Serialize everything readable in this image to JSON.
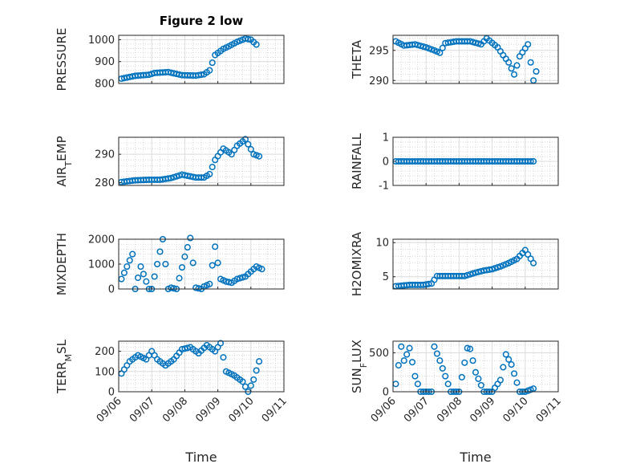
{
  "marker_color": "#0072bd",
  "chart_data": [
    {
      "type": "scatter",
      "title": "Figure 2 low",
      "ylabel": "PRESSURE",
      "ylabel_sub": "",
      "ylabel_post": "",
      "xlabel": "",
      "xlim": [
        "2024-09-06",
        "2024-09-11"
      ],
      "ylim": [
        800,
        1020
      ],
      "yticks": [
        800,
        900,
        1000
      ],
      "xticks": [],
      "series": [
        {
          "x": [
            "2024-09-06 02:00",
            "2024-09-06 12:00",
            "2024-09-06 22:00",
            "2024-09-07 02:00",
            "2024-09-07 12:00",
            "2024-09-07 22:00",
            "2024-09-08 08:00",
            "2024-09-08 14:00",
            "2024-09-08 18:00",
            "2024-09-08 22:00",
            "2024-09-09 04:00",
            "2024-09-09 08:00",
            "2024-09-09 14:00",
            "2024-09-09 20:00",
            "2024-09-10 00:00",
            "2024-09-10 04:00"
          ],
          "y": [
            822,
            835,
            840,
            848,
            852,
            838,
            836,
            842,
            860,
            930,
            958,
            970,
            990,
            1005,
            1000,
            978
          ]
        }
      ]
    },
    {
      "type": "scatter",
      "title": "",
      "ylabel": "THETA",
      "ylabel_sub": "",
      "ylabel_post": "",
      "xlabel": "",
      "xlim": [
        "2024-09-06",
        "2024-09-11"
      ],
      "ylim": [
        289.5,
        297.5
      ],
      "yticks": [
        290,
        295
      ],
      "xticks": [],
      "series": [
        {
          "x": [
            "2024-09-06 02:00",
            "2024-09-06 08:00",
            "2024-09-06 16:00",
            "2024-09-07 00:00",
            "2024-09-07 06:00",
            "2024-09-07 10:00",
            "2024-09-07 14:00",
            "2024-09-07 22:00",
            "2024-09-08 08:00",
            "2024-09-08 16:00",
            "2024-09-08 20:00",
            "2024-09-09 04:00",
            "2024-09-09 08:00",
            "2024-09-09 12:00",
            "2024-09-09 16:00",
            "2024-09-09 20:00",
            "2024-09-10 02:00",
            "2024-09-10 06:00",
            "2024-09-10 08:00"
          ],
          "y": [
            296.5,
            295.8,
            296.0,
            295.5,
            295.0,
            294.6,
            296.2,
            296.5,
            296.5,
            296.0,
            297.0,
            295.5,
            294.2,
            293.0,
            291.0,
            294.0,
            296.0,
            290.0,
            291.5
          ]
        }
      ]
    },
    {
      "type": "scatter",
      "title": "",
      "ylabel": "AIR",
      "ylabel_sub": "T",
      "ylabel_post": "EMP",
      "xlabel": "",
      "xlim": [
        "2024-09-06",
        "2024-09-11"
      ],
      "ylim": [
        279,
        296
      ],
      "yticks": [
        280,
        290
      ],
      "xticks": [],
      "series": [
        {
          "x": [
            "2024-09-06 02:00",
            "2024-09-06 12:00",
            "2024-09-06 22:00",
            "2024-09-07 06:00",
            "2024-09-07 14:00",
            "2024-09-07 22:00",
            "2024-09-08 08:00",
            "2024-09-08 14:00",
            "2024-09-08 18:00",
            "2024-09-08 22:00",
            "2024-09-09 04:00",
            "2024-09-09 10:00",
            "2024-09-09 14:00",
            "2024-09-09 20:00",
            "2024-09-10 02:00",
            "2024-09-10 06:00"
          ],
          "y": [
            280.2,
            280.8,
            281.0,
            281.0,
            281.6,
            282.8,
            281.8,
            281.8,
            283.0,
            288.0,
            292.0,
            290.0,
            293.0,
            295.3,
            290.0,
            289.3
          ]
        }
      ]
    },
    {
      "type": "scatter",
      "title": "",
      "ylabel": "RAINFALL",
      "ylabel_sub": "",
      "ylabel_post": "",
      "xlabel": "",
      "xlim": [
        "2024-09-06",
        "2024-09-11"
      ],
      "ylim": [
        -1,
        1
      ],
      "yticks": [
        -1,
        0,
        1
      ],
      "xticks": [],
      "series": [
        {
          "x": [
            "2024-09-06 02:00",
            "2024-09-10 06:00"
          ],
          "y": [
            0,
            0
          ]
        }
      ]
    },
    {
      "type": "scatter",
      "title": "",
      "ylabel": "MIXDEPTH",
      "ylabel_sub": "",
      "ylabel_post": "",
      "xlabel": "",
      "xlim": [
        "2024-09-06",
        "2024-09-11"
      ],
      "ylim": [
        0,
        2000
      ],
      "yticks": [
        0,
        1000,
        2000
      ],
      "xticks": [],
      "series": [
        {
          "x": [
            "2024-09-06 02:00",
            "2024-09-06 10:00",
            "2024-09-06 12:00",
            "2024-09-06 16:00",
            "2024-09-06 22:00",
            "2024-09-07 00:00",
            "2024-09-07 04:00",
            "2024-09-07 08:00",
            "2024-09-07 12:00",
            "2024-09-07 14:00",
            "2024-09-07 18:00",
            "2024-09-08 00:00",
            "2024-09-08 04:00",
            "2024-09-08 08:00",
            "2024-09-08 12:00",
            "2024-09-08 14:00",
            "2024-09-08 18:00",
            "2024-09-08 22:00",
            "2024-09-09 02:00",
            "2024-09-09 06:00",
            "2024-09-09 10:00",
            "2024-09-09 14:00",
            "2024-09-09 20:00",
            "2024-09-10 00:00",
            "2024-09-10 04:00",
            "2024-09-10 08:00"
          ],
          "y": [
            400,
            1400,
            0,
            900,
            0,
            0,
            1000,
            2000,
            0,
            50,
            0,
            1300,
            2050,
            50,
            0,
            100,
            200,
            1700,
            400,
            300,
            250,
            400,
            500,
            700,
            900,
            800
          ]
        }
      ]
    },
    {
      "type": "scatter",
      "title": "",
      "ylabel": "H2OMIXRA",
      "ylabel_sub": "",
      "ylabel_post": "",
      "xlabel": "",
      "xlim": [
        "2024-09-06",
        "2024-09-11"
      ],
      "ylim": [
        3.2,
        10.5
      ],
      "yticks": [
        5,
        10
      ],
      "xticks": [],
      "series": [
        {
          "x": [
            "2024-09-06 02:00",
            "2024-09-06 12:00",
            "2024-09-06 22:00",
            "2024-09-07 04:00",
            "2024-09-07 08:00",
            "2024-09-07 18:00",
            "2024-09-08 04:00",
            "2024-09-08 12:00",
            "2024-09-08 18:00",
            "2024-09-09 00:00",
            "2024-09-09 06:00",
            "2024-09-09 12:00",
            "2024-09-09 18:00",
            "2024-09-10 00:00",
            "2024-09-10 06:00"
          ],
          "y": [
            3.6,
            3.8,
            3.8,
            4.0,
            5.1,
            5.1,
            5.1,
            5.6,
            5.9,
            6.1,
            6.5,
            7.0,
            7.6,
            8.9,
            7.0
          ]
        }
      ]
    },
    {
      "type": "scatter",
      "title": "",
      "ylabel": "TERR",
      "ylabel_sub": "M",
      "ylabel_post": "SL",
      "xlabel": "Time",
      "xlim": [
        "2024-09-06",
        "2024-09-11"
      ],
      "ylim": [
        0,
        250
      ],
      "yticks": [
        0,
        100,
        200
      ],
      "xticks": [
        "09/06",
        "09/07",
        "09/08",
        "09/09",
        "09/10",
        "09/11"
      ],
      "series": [
        {
          "x": [
            "2024-09-06 02:00",
            "2024-09-06 08:00",
            "2024-09-06 14:00",
            "2024-09-06 20:00",
            "2024-09-07 00:00",
            "2024-09-07 04:00",
            "2024-09-07 10:00",
            "2024-09-07 16:00",
            "2024-09-07 22:00",
            "2024-09-08 04:00",
            "2024-09-08 10:00",
            "2024-09-08 16:00",
            "2024-09-08 22:00",
            "2024-09-09 02:00",
            "2024-09-09 06:00",
            "2024-09-09 12:00",
            "2024-09-09 18:00",
            "2024-09-09 22:00",
            "2024-09-10 02:00",
            "2024-09-10 06:00"
          ],
          "y": [
            90,
            150,
            180,
            160,
            200,
            160,
            130,
            160,
            210,
            220,
            190,
            230,
            200,
            240,
            100,
            80,
            50,
            0,
            60,
            150
          ]
        }
      ]
    },
    {
      "type": "scatter",
      "title": "",
      "ylabel": "SUN",
      "ylabel_sub": "F",
      "ylabel_post": "LUX",
      "xlabel": "Time",
      "xlim": [
        "2024-09-06",
        "2024-09-11"
      ],
      "ylim": [
        0,
        650
      ],
      "yticks": [
        0,
        500
      ],
      "xticks": [
        "09/06",
        "09/07",
        "09/08",
        "09/09",
        "09/10",
        "09/11"
      ],
      "series": [
        {
          "x": [
            "2024-09-06 02:00",
            "2024-09-06 06:00",
            "2024-09-06 08:00",
            "2024-09-06 12:00",
            "2024-09-06 16:00",
            "2024-09-06 20:00",
            "2024-09-07 00:00",
            "2024-09-07 04:00",
            "2024-09-07 06:00",
            "2024-09-07 10:00",
            "2024-09-07 18:00",
            "2024-09-08 00:00",
            "2024-09-08 06:00",
            "2024-09-08 08:00",
            "2024-09-08 12:00",
            "2024-09-08 18:00",
            "2024-09-09 00:00",
            "2024-09-09 06:00",
            "2024-09-09 10:00",
            "2024-09-09 14:00",
            "2024-09-09 20:00",
            "2024-09-10 00:00",
            "2024-09-10 06:00"
          ],
          "y": [
            100,
            580,
            400,
            560,
            200,
            0,
            0,
            0,
            580,
            400,
            0,
            0,
            560,
            550,
            250,
            0,
            0,
            150,
            480,
            350,
            0,
            0,
            40
          ]
        }
      ]
    }
  ]
}
